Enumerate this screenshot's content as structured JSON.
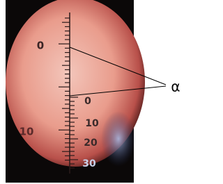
{
  "scales": {
    "left": {
      "labels": [
        "0",
        "10"
      ]
    },
    "right": {
      "labels": [
        "0",
        "10",
        "20",
        "30"
      ]
    }
  },
  "annotation": {
    "label": "α"
  }
}
